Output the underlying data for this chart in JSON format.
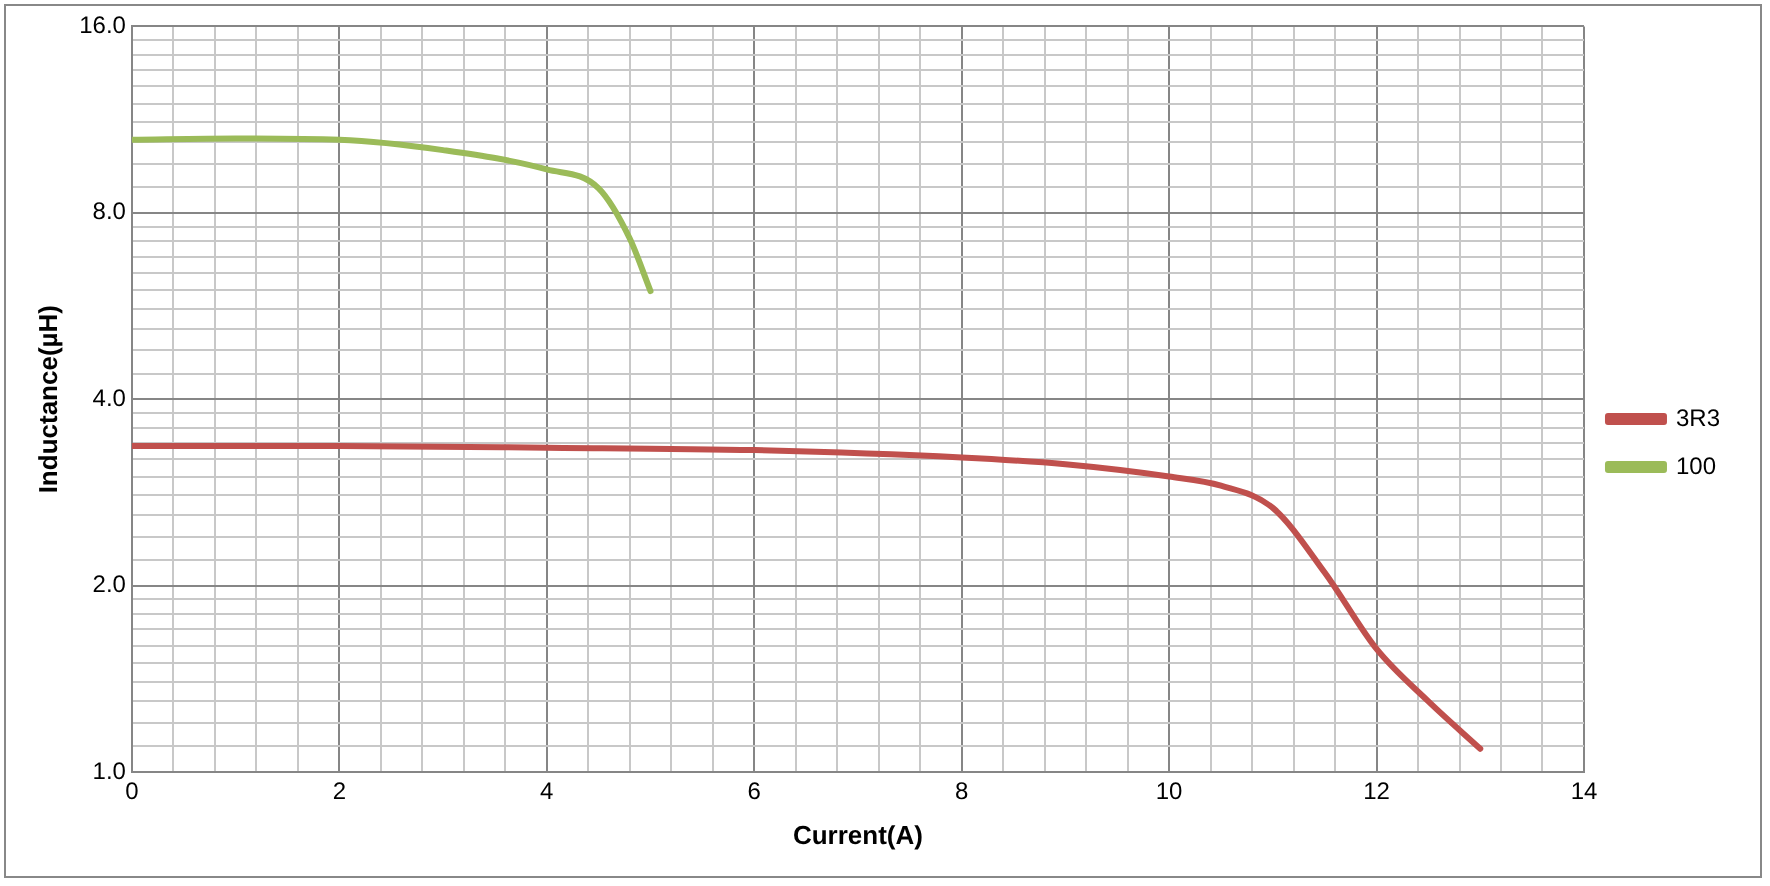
{
  "chart_data": {
    "type": "line",
    "xlabel": "Current(A)",
    "ylabel": "Inductance(µH)",
    "log": "y",
    "grid": true,
    "legend": "right",
    "marker": "none",
    "line_style": "solid",
    "xlim": [
      0,
      14
    ],
    "xticks": [
      0,
      {
        "value": 0.4,
        "label": null
      },
      {
        "value": 0.8,
        "label": null
      },
      {
        "value": 1.2,
        "label": null
      },
      {
        "value": 1.6,
        "label": null
      },
      2,
      {
        "value": 2.4,
        "label": null
      },
      {
        "value": 2.8,
        "label": null
      },
      {
        "value": 3.2,
        "label": null
      },
      {
        "value": 3.6,
        "label": null
      },
      4,
      {
        "value": 4.4,
        "label": null
      },
      {
        "value": 4.8,
        "label": null
      },
      {
        "value": 5.2,
        "label": null
      },
      {
        "value": 5.6,
        "label": null
      },
      6,
      {
        "value": 6.4,
        "label": null
      },
      {
        "value": 6.8,
        "label": null
      },
      {
        "value": 7.2,
        "label": null
      },
      {
        "value": 7.6,
        "label": null
      },
      8,
      {
        "value": 8.4,
        "label": null
      },
      {
        "value": 8.8,
        "label": null
      },
      {
        "value": 9.2,
        "label": null
      },
      {
        "value": 9.6,
        "label": null
      },
      10,
      {
        "value": 10.4,
        "label": null
      },
      {
        "value": 10.8,
        "label": null
      },
      {
        "value": 11.2,
        "label": null
      },
      {
        "value": 11.6,
        "label": null
      },
      12,
      {
        "value": 12.4,
        "label": null
      },
      {
        "value": 12.8,
        "label": null
      },
      {
        "value": 13.2,
        "label": null
      },
      {
        "value": 13.6,
        "label": null
      },
      14
    ],
    "ylim": [
      1,
      16
    ],
    "yticks": [
      {
        "value": 1,
        "label": "1.0"
      },
      {
        "value": 1.1,
        "label": null
      },
      {
        "value": 1.2,
        "label": null
      },
      {
        "value": 1.3,
        "label": null
      },
      {
        "value": 1.4,
        "label": null
      },
      {
        "value": 1.5,
        "label": null
      },
      {
        "value": 1.6,
        "label": null
      },
      {
        "value": 1.7,
        "label": null
      },
      {
        "value": 1.8,
        "label": null
      },
      {
        "value": 1.9,
        "label": null
      },
      {
        "value": 2,
        "label": "2.0"
      },
      {
        "value": 2.2,
        "label": null
      },
      {
        "value": 2.4,
        "label": null
      },
      {
        "value": 2.6,
        "label": null
      },
      {
        "value": 2.8,
        "label": null
      },
      {
        "value": 3,
        "label": null
      },
      {
        "value": 3.2,
        "label": null
      },
      {
        "value": 3.4,
        "label": null
      },
      {
        "value": 3.6,
        "label": null
      },
      {
        "value": 3.8,
        "label": null
      },
      {
        "value": 4,
        "label": "4.0"
      },
      {
        "value": 4.4,
        "label": null
      },
      {
        "value": 4.8,
        "label": null
      },
      {
        "value": 5.2,
        "label": null
      },
      {
        "value": 5.6,
        "label": null
      },
      {
        "value": 6,
        "label": null
      },
      {
        "value": 6.4,
        "label": null
      },
      {
        "value": 6.8,
        "label": null
      },
      {
        "value": 7.2,
        "label": null
      },
      {
        "value": 7.6,
        "label": null
      },
      {
        "value": 8,
        "label": "8.0"
      },
      {
        "value": 8.8,
        "label": null
      },
      {
        "value": 9.6,
        "label": null
      },
      {
        "value": 10.4,
        "label": null
      },
      {
        "value": 11.2,
        "label": null
      },
      {
        "value": 12,
        "label": null
      },
      {
        "value": 12.8,
        "label": null
      },
      {
        "value": 13.6,
        "label": null
      },
      {
        "value": 14.4,
        "label": null
      },
      {
        "value": 15.2,
        "label": null
      },
      {
        "value": 16,
        "label": "16.0"
      }
    ],
    "series": [
      {
        "name": "3R3",
        "color": "#c0504d",
        "x": [
          0,
          2,
          4,
          6,
          8,
          9,
          10,
          10.5,
          11,
          11.5,
          12,
          12.5,
          13
        ],
        "values": [
          3.36,
          3.36,
          3.34,
          3.31,
          3.22,
          3.14,
          3.0,
          2.9,
          2.67,
          2.1,
          1.58,
          1.3,
          1.09
        ]
      },
      {
        "name": "100",
        "color": "#9bbb59",
        "x": [
          0,
          1,
          2,
          3,
          4,
          4.5,
          4.8,
          5
        ],
        "values": [
          10.5,
          10.55,
          10.5,
          10.1,
          9.4,
          8.76,
          7.27,
          5.98
        ]
      }
    ]
  }
}
